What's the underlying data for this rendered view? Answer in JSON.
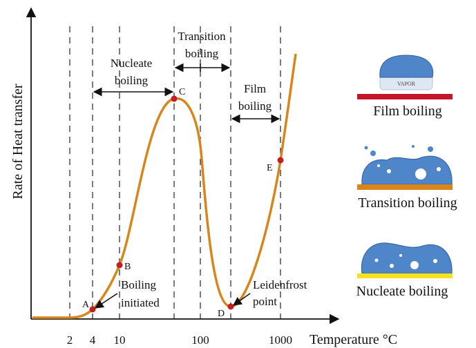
{
  "axes": {
    "y_label": "Rate of Heat transfer",
    "x_label": "Temperature °C",
    "x_ticks": [
      "2",
      "4",
      "10",
      "100",
      "1000"
    ]
  },
  "regions": [
    {
      "lines": [
        "Nucleate",
        "boiling"
      ]
    },
    {
      "lines": [
        "Transition",
        "boiling"
      ]
    },
    {
      "lines": [
        "Film",
        "boiling"
      ]
    }
  ],
  "points": [
    "A",
    "B",
    "C",
    "D",
    "E"
  ],
  "annotations": [
    {
      "lines": [
        "Boiling",
        "initiated"
      ]
    },
    {
      "lines": [
        "Leidenfrost",
        "point"
      ]
    }
  ],
  "illustrations": [
    {
      "caption": "Film boiling",
      "layer": "VAPOR"
    },
    {
      "caption": "Transition boiling"
    },
    {
      "caption": "Nucleate boiling"
    }
  ]
}
